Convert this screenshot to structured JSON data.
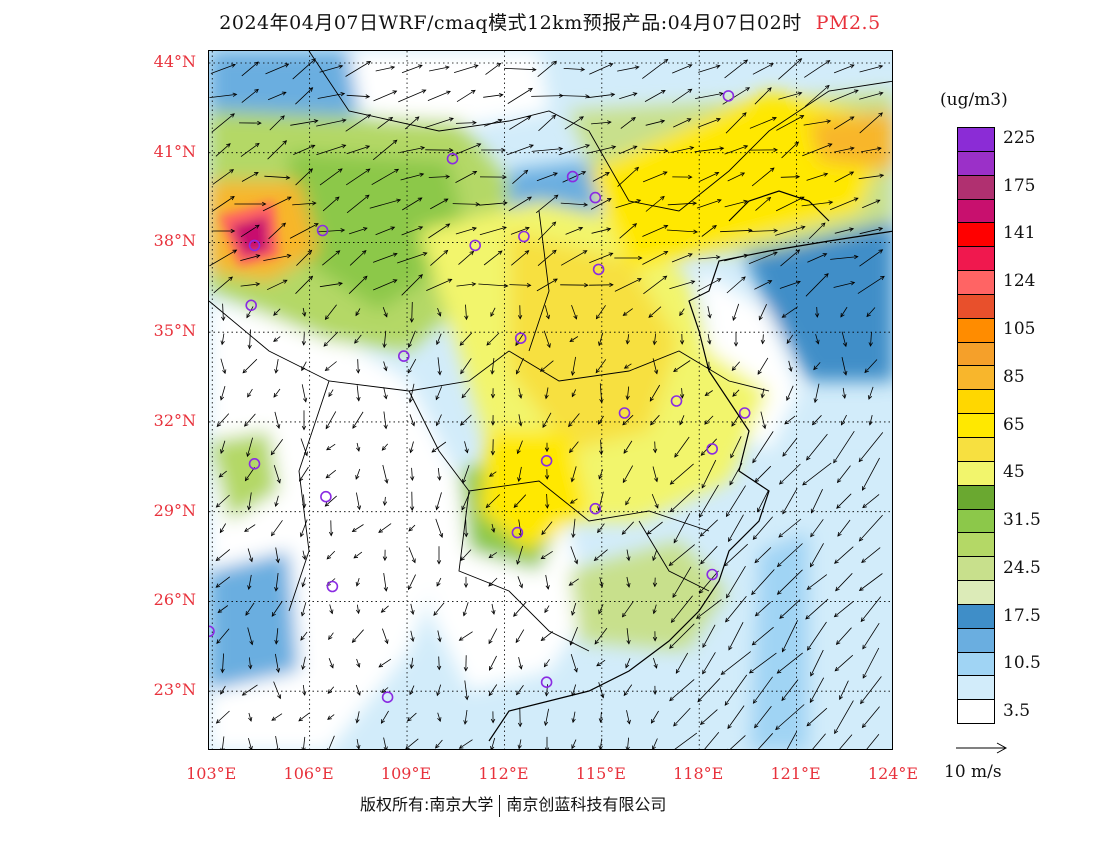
{
  "header": {
    "title": "2024年04月07日WRF/cmaq模式12km预报产品:04月07日02时",
    "variable": "PM2.5"
  },
  "axes": {
    "latitude_ticks": [
      "44°N",
      "41°N",
      "38°N",
      "35°N",
      "32°N",
      "29°N",
      "26°N",
      "23°N"
    ],
    "longitude_ticks": [
      "103°E",
      "106°E",
      "109°E",
      "112°E",
      "115°E",
      "118°E",
      "121°E",
      "124°E"
    ]
  },
  "legend": {
    "unit": "(ug/m3)",
    "levels": [
      {
        "label": "225",
        "color": "#8b2cd6"
      },
      {
        "label": "",
        "color": "#9b30c8"
      },
      {
        "label": "175",
        "color": "#b03070"
      },
      {
        "label": "",
        "color": "#c8106e"
      },
      {
        "label": "141",
        "color": "#ff0000"
      },
      {
        "label": "",
        "color": "#f0184e"
      },
      {
        "label": "124",
        "color": "#ff6464"
      },
      {
        "label": "",
        "color": "#e8502c"
      },
      {
        "label": "105",
        "color": "#ff8c00"
      },
      {
        "label": "",
        "color": "#f5a02a"
      },
      {
        "label": "85",
        "color": "#f8b62c"
      },
      {
        "label": "",
        "color": "#ffd700"
      },
      {
        "label": "65",
        "color": "#ffe800"
      },
      {
        "label": "",
        "color": "#f7e040"
      },
      {
        "label": "45",
        "color": "#f2f56c"
      },
      {
        "label": "",
        "color": "#6aa830"
      },
      {
        "label": "31.5",
        "color": "#8cc84a"
      },
      {
        "label": "",
        "color": "#b4d866"
      },
      {
        "label": "24.5",
        "color": "#c8e08c"
      },
      {
        "label": "",
        "color": "#dcebb8"
      },
      {
        "label": "17.5",
        "color": "#3f8ec8"
      },
      {
        "label": "",
        "color": "#6aaee0"
      },
      {
        "label": "10.5",
        "color": "#a0d4f4"
      },
      {
        "label": "",
        "color": "#d2ecfa"
      },
      {
        "label": "3.5",
        "color": "#ffffff"
      }
    ]
  },
  "wind_reference": {
    "label": "10 m/s"
  },
  "footer": {
    "copyright_left": "版权所有:南京大学",
    "copyright_right": "南京创蓝科技有限公司"
  },
  "stations": [
    {
      "lon": 118.9,
      "lat": 42.9
    },
    {
      "lon": 110.4,
      "lat": 40.8
    },
    {
      "lon": 114.1,
      "lat": 40.2
    },
    {
      "lon": 114.8,
      "lat": 39.5
    },
    {
      "lon": 104.3,
      "lat": 37.9
    },
    {
      "lon": 106.4,
      "lat": 38.4
    },
    {
      "lon": 111.1,
      "lat": 37.9
    },
    {
      "lon": 112.6,
      "lat": 38.2
    },
    {
      "lon": 114.9,
      "lat": 37.1
    },
    {
      "lon": 104.2,
      "lat": 35.9
    },
    {
      "lon": 112.5,
      "lat": 34.8
    },
    {
      "lon": 108.9,
      "lat": 34.2
    },
    {
      "lon": 115.7,
      "lat": 32.3
    },
    {
      "lon": 117.3,
      "lat": 32.7
    },
    {
      "lon": 119.4,
      "lat": 32.3
    },
    {
      "lon": 118.4,
      "lat": 31.1
    },
    {
      "lon": 104.3,
      "lat": 30.6
    },
    {
      "lon": 113.3,
      "lat": 30.7
    },
    {
      "lon": 106.5,
      "lat": 29.5
    },
    {
      "lon": 114.8,
      "lat": 29.1
    },
    {
      "lon": 112.4,
      "lat": 28.3
    },
    {
      "lon": 118.4,
      "lat": 26.9
    },
    {
      "lon": 106.7,
      "lat": 26.5
    },
    {
      "lon": 102.9,
      "lat": 25.0
    },
    {
      "lon": 113.3,
      "lat": 23.3
    },
    {
      "lon": 108.4,
      "lat": 22.8
    }
  ],
  "colors": {
    "tick_label": "#e8323c",
    "station_marker": "#8a2be2",
    "sea": "#d2ecfa"
  }
}
